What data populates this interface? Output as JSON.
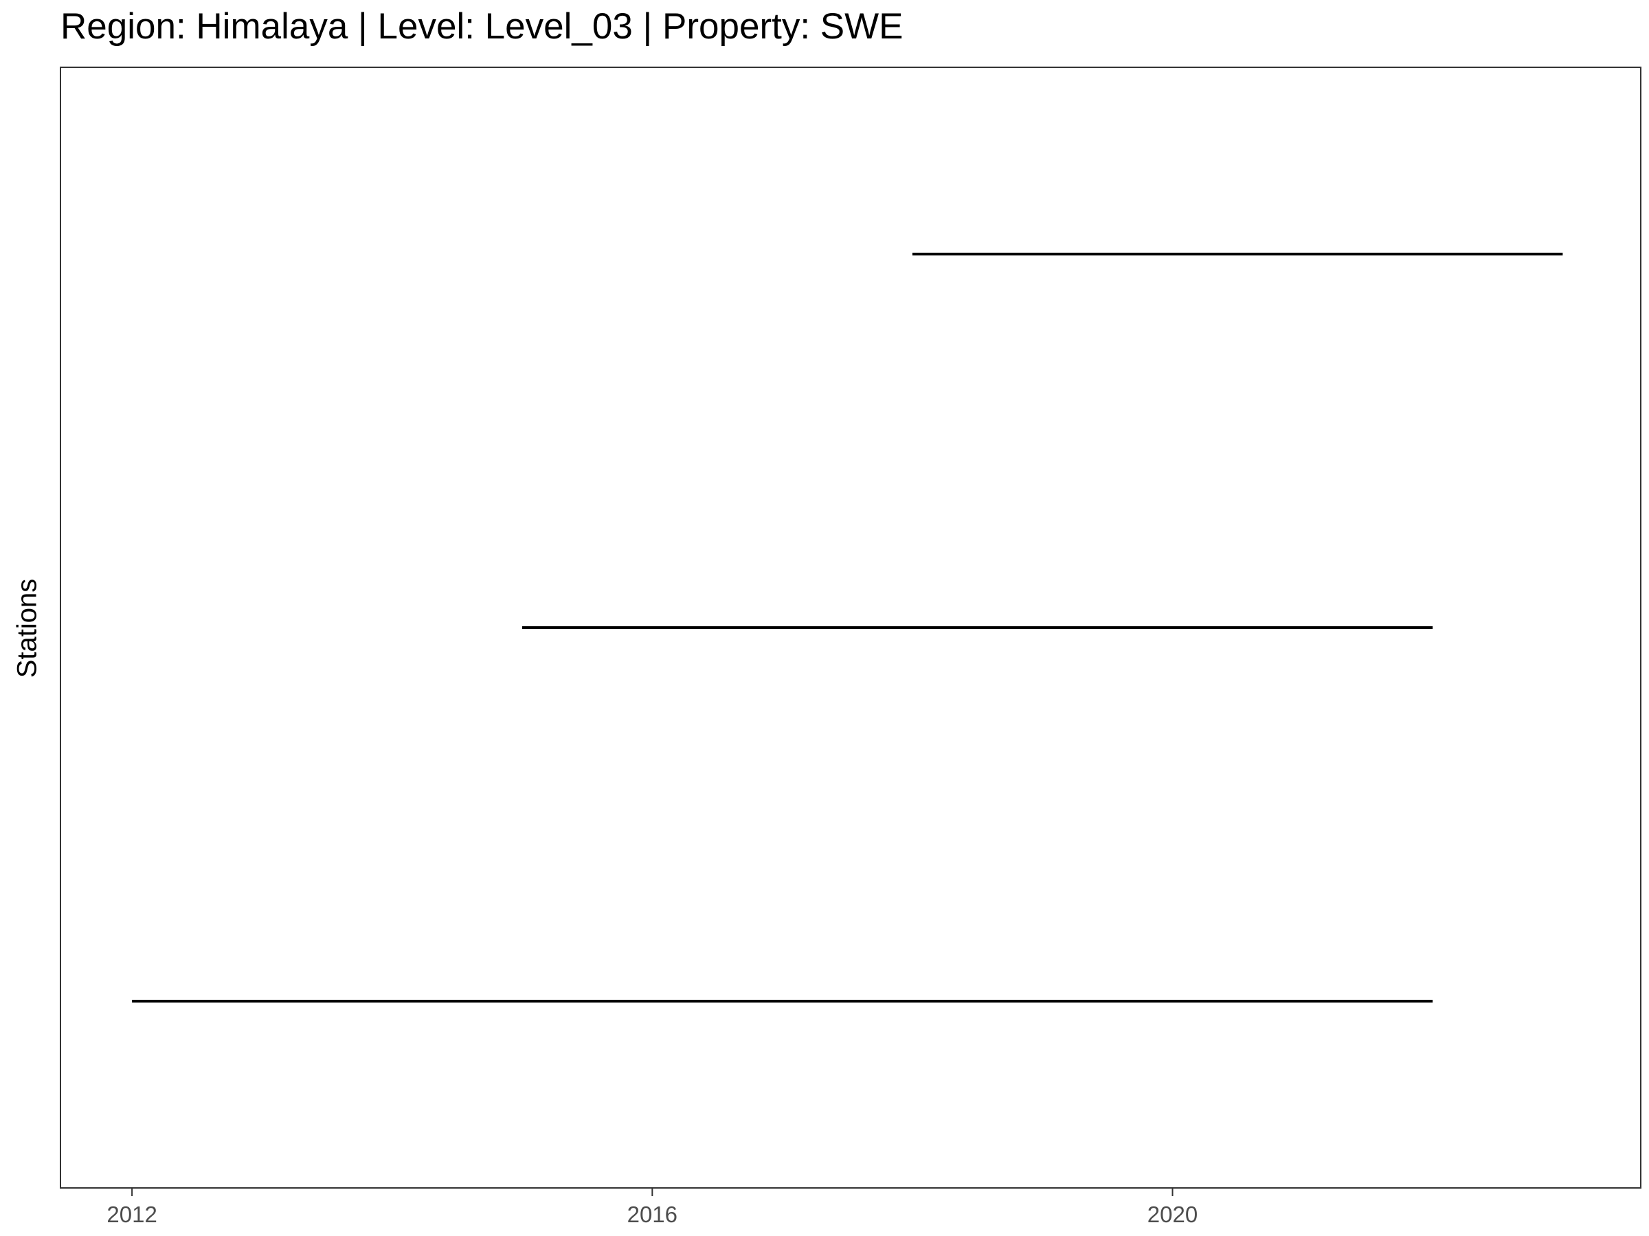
{
  "chart_data": {
    "type": "line",
    "title": "Region: Himalaya | Level: Level_03 | Property: SWE",
    "xlabel": "",
    "ylabel": "Stations",
    "xlim": [
      2011.45,
      2023.6
    ],
    "x_ticks": [
      "2012",
      "2016",
      "2020"
    ],
    "grid": false,
    "series": [
      {
        "x": [
          2012.0,
          2022.0
        ],
        "y": [
          1,
          1
        ]
      },
      {
        "x": [
          2015.0,
          2022.0
        ],
        "y": [
          2,
          2
        ]
      },
      {
        "x": [
          2018.0,
          2023.0
        ],
        "y": [
          3,
          3
        ]
      }
    ],
    "colors": {
      "line": "#000000",
      "axis": "#333333",
      "tick_text": "#4d4d4d"
    }
  }
}
